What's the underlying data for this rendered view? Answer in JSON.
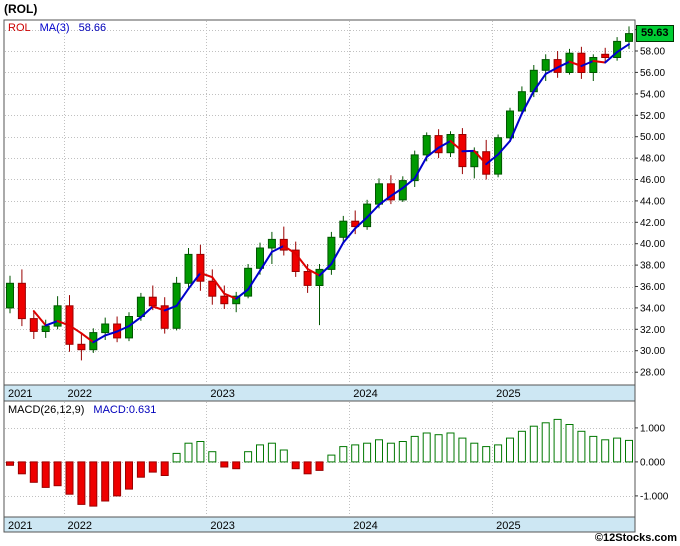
{
  "title": "(ROL)",
  "watermark": "©12Stocks.com",
  "price_panel": {
    "legend": {
      "symbol": "ROL",
      "ma_label": "MA(3)",
      "ma_value": "58.66"
    },
    "last_price_label": "59.63"
  },
  "macd_panel": {
    "legend": {
      "label": "MACD(26,12,9)",
      "value": "MACD:0.631"
    }
  },
  "x_axis": {
    "year_labels": [
      "2021",
      "2022",
      "2023",
      "2024",
      "2025"
    ]
  },
  "colors": {
    "up": "#009900",
    "up_border": "#005500",
    "down": "#ee0000",
    "down_border": "#990000",
    "ma_up": "#0000cc",
    "ma_down": "#dd0000",
    "legend_symbol": "#cc0000",
    "legend_value": "#0000bb",
    "band": "#cde7f3",
    "grid": "#c0c0c0",
    "frame": "#555555",
    "price_label_bg": "#00cc33",
    "macd_pos_fill": "#ffffff",
    "macd_pos_border": "#007700"
  },
  "chart_data": [
    {
      "type": "candlestick",
      "title": "(ROL) monthly price with MA(3) overlay",
      "n_points": 53,
      "year_start_indices": {
        "2022": 5,
        "2023": 17,
        "2024": 29,
        "2025": 41
      },
      "open": [
        34.0,
        36.3,
        33.0,
        31.8,
        32.3,
        34.2,
        30.6,
        30.1,
        31.7,
        32.5,
        31.2,
        33.2,
        35.0,
        34.2,
        32.1,
        36.3,
        39.0,
        36.5,
        35.1,
        34.4,
        35.1,
        37.7,
        39.6,
        40.4,
        39.4,
        37.4,
        36.1,
        37.6,
        40.6,
        42.1,
        41.6,
        43.7,
        45.6,
        44.1,
        45.9,
        48.3,
        50.1,
        48.5,
        50.2,
        47.2,
        48.6,
        46.5,
        49.9,
        52.4,
        54.2,
        56.2,
        57.2,
        56.0,
        57.8,
        56.0,
        57.7,
        57.4,
        58.9
      ],
      "high": [
        37.0,
        37.6,
        33.7,
        32.9,
        35.1,
        35.2,
        31.6,
        32.1,
        33.1,
        33.2,
        33.6,
        35.4,
        36.1,
        35.0,
        36.9,
        39.6,
        39.9,
        37.6,
        36.1,
        35.5,
        38.1,
        40.1,
        41.1,
        41.6,
        40.2,
        38.1,
        38.1,
        41.1,
        42.6,
        43.1,
        44.1,
        46.1,
        46.4,
        46.3,
        48.7,
        50.4,
        50.7,
        50.5,
        50.8,
        49.0,
        49.7,
        50.2,
        52.7,
        54.7,
        56.7,
        57.7,
        58.0,
        58.2,
        58.4,
        57.7,
        58.3,
        59.3,
        60.3
      ],
      "low": [
        33.5,
        32.3,
        31.1,
        31.2,
        32.0,
        29.9,
        29.1,
        29.8,
        31.0,
        30.8,
        30.9,
        32.8,
        33.8,
        31.6,
        31.9,
        35.9,
        35.6,
        34.3,
        33.9,
        33.6,
        34.9,
        37.1,
        38.1,
        38.9,
        36.9,
        35.4,
        32.4,
        37.1,
        40.1,
        40.9,
        41.3,
        43.3,
        43.7,
        43.9,
        45.3,
        47.7,
        48.0,
        48.1,
        46.5,
        46.1,
        46.0,
        46.2,
        49.5,
        52.0,
        53.7,
        55.2,
        55.5,
        55.8,
        55.4,
        55.2,
        56.9,
        57.1,
        58.2
      ],
      "close": [
        36.3,
        33.0,
        31.8,
        32.3,
        34.2,
        30.6,
        30.1,
        31.7,
        32.5,
        31.2,
        33.2,
        35.0,
        34.2,
        32.1,
        36.3,
        39.0,
        36.5,
        35.1,
        34.4,
        35.1,
        37.7,
        39.6,
        40.4,
        39.4,
        37.4,
        36.1,
        37.6,
        40.6,
        42.1,
        41.6,
        43.7,
        45.6,
        44.1,
        45.9,
        48.3,
        50.1,
        48.5,
        50.2,
        47.2,
        48.6,
        46.5,
        49.9,
        52.4,
        54.2,
        56.2,
        57.2,
        56.0,
        57.8,
        56.0,
        57.4,
        57.4,
        58.9,
        59.63
      ],
      "overlays": [
        {
          "name": "MA(3)",
          "type": "line",
          "period": 3,
          "last_value": 58.66
        }
      ],
      "ylim": [
        26.8,
        60.9
      ],
      "yticks": [
        28,
        30,
        32,
        34,
        36,
        38,
        40,
        42,
        44,
        46,
        48,
        50,
        52,
        54,
        56,
        58,
        60
      ],
      "last_close": 59.63
    },
    {
      "type": "bar",
      "name": "MACD(26,12,9) histogram",
      "values": [
        -0.1,
        -0.35,
        -0.6,
        -0.75,
        -0.7,
        -0.95,
        -1.25,
        -1.3,
        -1.15,
        -1.0,
        -0.8,
        -0.45,
        -0.3,
        -0.4,
        0.25,
        0.55,
        0.6,
        0.3,
        -0.15,
        -0.2,
        0.3,
        0.5,
        0.55,
        0.35,
        -0.2,
        -0.35,
        -0.25,
        0.2,
        0.45,
        0.5,
        0.55,
        0.65,
        0.55,
        0.6,
        0.75,
        0.85,
        0.8,
        0.85,
        0.7,
        0.55,
        0.45,
        0.5,
        0.7,
        0.9,
        1.05,
        1.15,
        1.25,
        1.1,
        0.9,
        0.75,
        0.65,
        0.7,
        0.631
      ],
      "ylim": [
        -1.62,
        1.79
      ],
      "yticks": [
        -1,
        0,
        1
      ],
      "last_value": 0.631
    }
  ]
}
